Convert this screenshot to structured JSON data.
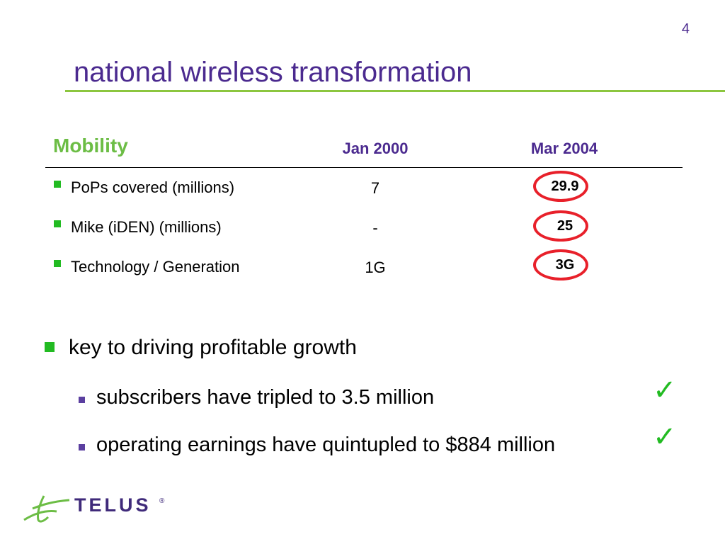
{
  "page_number": "4",
  "title": "national wireless transformation",
  "table": {
    "section_label": "Mobility",
    "columns": [
      "Jan 2000",
      "Mar 2004"
    ],
    "rows": [
      {
        "label": "PoPs covered (millions)",
        "jan_2000": "7",
        "mar_2004": "29.9"
      },
      {
        "label": "Mike (iDEN) (millions)",
        "jan_2000": "-",
        "mar_2004": "25"
      },
      {
        "label": "Technology / Generation",
        "jan_2000": "1G",
        "mar_2004": "3G"
      }
    ]
  },
  "bullets": {
    "main": "key to driving profitable growth",
    "sub": [
      "subscribers have tripled to 3.5 million",
      "operating earnings have quintupled to $884 million"
    ]
  },
  "check_glyph": "✓",
  "logo": {
    "text": "TELUS",
    "reg": "®"
  },
  "colors": {
    "title": "#4b2a8f",
    "accent_green": "#8cc63f",
    "bullet_green": "#22bb22",
    "highlight_red": "#e8202a"
  }
}
